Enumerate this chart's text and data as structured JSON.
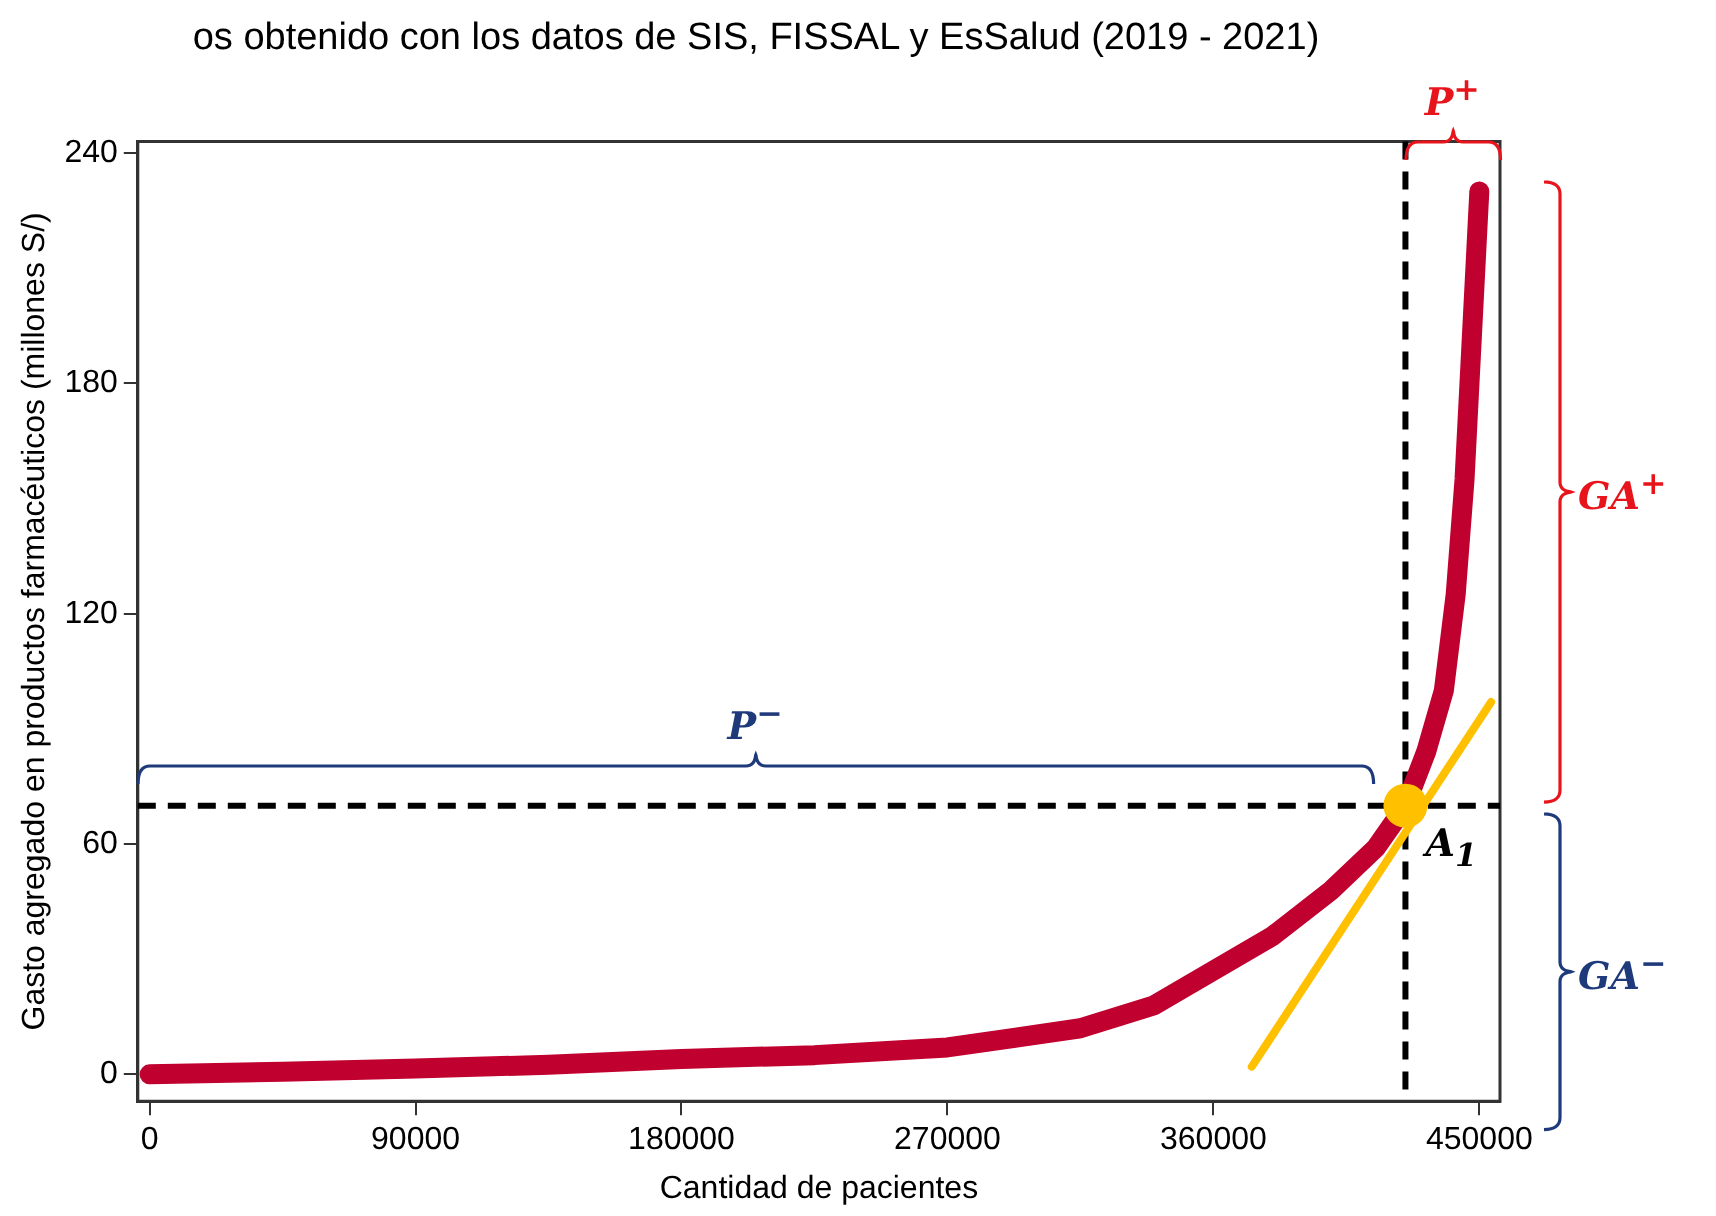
{
  "chart_data": {
    "type": "line",
    "title": "os obtenido con los datos de SIS, FISSAL y EsSalud (2019 - 2021)",
    "xlabel": "Cantidad de pacientes",
    "ylabel": "Gasto agregado en productos farmacéuticos (millones S/)",
    "xlim": [
      -4000,
      457000
    ],
    "xticks": [
      0,
      90000,
      180000,
      270000,
      360000,
      450000
    ],
    "ylim": [
      -7,
      243
    ],
    "yticks": [
      0,
      60,
      120,
      180,
      240
    ],
    "series": [
      {
        "type": "line",
        "color": "#c0002f",
        "marker": "none",
        "line_style": "solid",
        "x": [
          0,
          45000,
          90000,
          135000,
          180000,
          225000,
          270000,
          315000,
          340000,
          360000,
          380000,
          400000,
          415000,
          425000,
          432000,
          438000,
          442000,
          445000,
          447000,
          449000,
          450000
        ],
        "values": [
          0,
          0.7,
          1.5,
          2.5,
          4,
          5,
          7,
          12,
          18,
          27,
          36,
          48,
          59,
          70,
          84,
          100,
          125,
          155,
          185,
          215,
          230
        ]
      },
      {
        "type": "line",
        "color": "#ffc000",
        "marker": "none",
        "line_style": "solid",
        "x": [
          373000,
          454000
        ],
        "values": [
          2,
          97
        ]
      },
      {
        "type": "scatter",
        "color": "#ffc000",
        "marker": "circle",
        "x": [
          425000
        ],
        "values": [
          70
        ]
      }
    ],
    "ref_lines": [
      {
        "axis": "y",
        "value": 70,
        "color": "#000000",
        "line_style": "dashed"
      },
      {
        "axis": "x",
        "value": 425000,
        "color": "#000000",
        "line_style": "dashed"
      }
    ],
    "annotations": [
      "P$^{−}$",
      "P$^{+}$",
      "GA$^{+}$",
      "GA$^{−}$",
      {
        "text": "A$_{1}$",
        "x": 425000,
        "y": 70
      }
    ]
  }
}
